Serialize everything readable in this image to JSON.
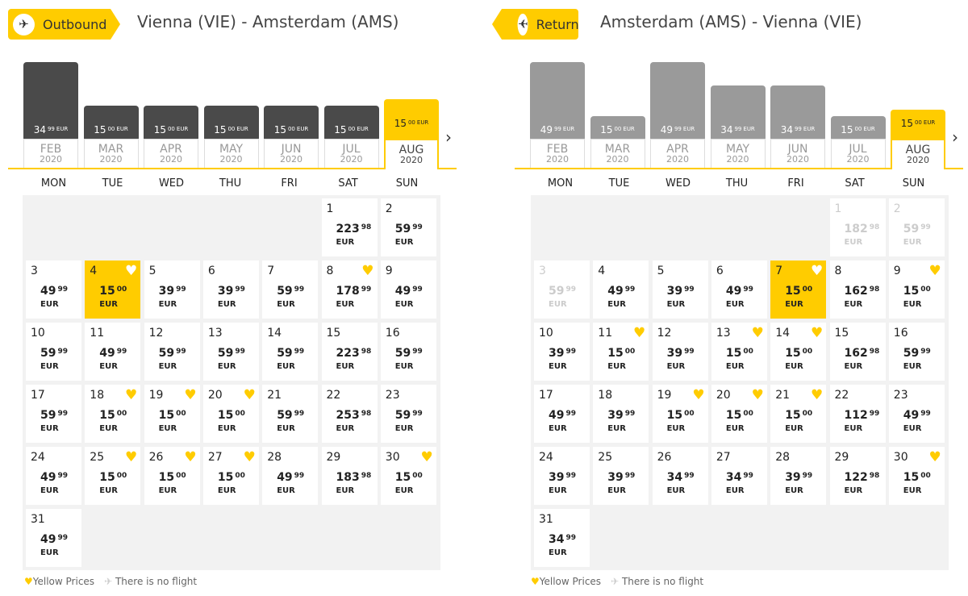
{
  "colors": {
    "accent": "#ffcc00",
    "bar_out": "#4a4a4a",
    "bar_ret": "#9a9a9a"
  },
  "weekdays": [
    "MON",
    "TUE",
    "WED",
    "THU",
    "FRI",
    "SAT",
    "SUN"
  ],
  "legend": {
    "yellow": "Yellow Prices",
    "noflight": "There is no flight"
  },
  "outbound": {
    "tag": "Outbound",
    "route": "Vienna (VIE) - Amsterdam (AMS)",
    "months": [
      {
        "m": "FEB",
        "y": "2020",
        "int": "34",
        "dec": "99",
        "cur": "EUR",
        "price": 34.99
      },
      {
        "m": "MAR",
        "y": "2020",
        "int": "15",
        "dec": "00",
        "cur": "EUR",
        "price": 15
      },
      {
        "m": "APR",
        "y": "2020",
        "int": "15",
        "dec": "00",
        "cur": "EUR",
        "price": 15
      },
      {
        "m": "MAY",
        "y": "2020",
        "int": "15",
        "dec": "00",
        "cur": "EUR",
        "price": 15
      },
      {
        "m": "JUN",
        "y": "2020",
        "int": "15",
        "dec": "00",
        "cur": "EUR",
        "price": 15
      },
      {
        "m": "JUL",
        "y": "2020",
        "int": "15",
        "dec": "00",
        "cur": "EUR",
        "price": 15
      },
      {
        "m": "AUG",
        "y": "2020",
        "int": "15",
        "dec": "00",
        "cur": "EUR",
        "price": 15,
        "selected": true
      }
    ],
    "first_weekday": 5,
    "days": [
      [
        "223",
        "98"
      ],
      [
        "59",
        "99"
      ],
      [
        "49",
        "99"
      ],
      [
        "15",
        "00",
        "h",
        "sel"
      ],
      [
        "39",
        "99"
      ],
      [
        "39",
        "99"
      ],
      [
        "59",
        "99"
      ],
      [
        "178",
        "99",
        "h"
      ],
      [
        "49",
        "99"
      ],
      [
        "59",
        "99"
      ],
      [
        "49",
        "99"
      ],
      [
        "59",
        "99"
      ],
      [
        "59",
        "99"
      ],
      [
        "59",
        "99"
      ],
      [
        "223",
        "98"
      ],
      [
        "59",
        "99"
      ],
      [
        "59",
        "99"
      ],
      [
        "15",
        "00",
        "h"
      ],
      [
        "15",
        "00",
        "h"
      ],
      [
        "15",
        "00",
        "h"
      ],
      [
        "59",
        "99"
      ],
      [
        "253",
        "98"
      ],
      [
        "59",
        "99"
      ],
      [
        "49",
        "99"
      ],
      [
        "15",
        "00",
        "h"
      ],
      [
        "15",
        "00",
        "h"
      ],
      [
        "15",
        "00",
        "h"
      ],
      [
        "49",
        "99"
      ],
      [
        "183",
        "98"
      ],
      [
        "15",
        "00",
        "h"
      ],
      [
        "49",
        "99"
      ]
    ]
  },
  "return": {
    "tag": "Return",
    "route": "Amsterdam (AMS) - Vienna (VIE)",
    "months": [
      {
        "m": "FEB",
        "y": "2020",
        "int": "49",
        "dec": "99",
        "cur": "EUR",
        "price": 49.99
      },
      {
        "m": "MAR",
        "y": "2020",
        "int": "15",
        "dec": "00",
        "cur": "EUR",
        "price": 15
      },
      {
        "m": "APR",
        "y": "2020",
        "int": "49",
        "dec": "99",
        "cur": "EUR",
        "price": 49.99
      },
      {
        "m": "MAY",
        "y": "2020",
        "int": "34",
        "dec": "99",
        "cur": "EUR",
        "price": 34.99
      },
      {
        "m": "JUN",
        "y": "2020",
        "int": "34",
        "dec": "99",
        "cur": "EUR",
        "price": 34.99
      },
      {
        "m": "JUL",
        "y": "2020",
        "int": "15",
        "dec": "00",
        "cur": "EUR",
        "price": 15
      },
      {
        "m": "AUG",
        "y": "2020",
        "int": "15",
        "dec": "00",
        "cur": "EUR",
        "price": 15,
        "selected": true
      }
    ],
    "first_weekday": 5,
    "days": [
      [
        "182",
        "98",
        "",
        "dis"
      ],
      [
        "59",
        "99",
        "",
        "dis"
      ],
      [
        "59",
        "99",
        "",
        "dis"
      ],
      [
        "49",
        "99"
      ],
      [
        "39",
        "99"
      ],
      [
        "49",
        "99"
      ],
      [
        "15",
        "00",
        "h",
        "sel"
      ],
      [
        "162",
        "98"
      ],
      [
        "15",
        "00",
        "h"
      ],
      [
        "39",
        "99"
      ],
      [
        "15",
        "00",
        "h"
      ],
      [
        "39",
        "99"
      ],
      [
        "15",
        "00",
        "h"
      ],
      [
        "15",
        "00",
        "h"
      ],
      [
        "162",
        "98"
      ],
      [
        "59",
        "99"
      ],
      [
        "49",
        "99"
      ],
      [
        "39",
        "99"
      ],
      [
        "15",
        "00",
        "h"
      ],
      [
        "15",
        "00",
        "h"
      ],
      [
        "15",
        "00",
        "h"
      ],
      [
        "112",
        "99"
      ],
      [
        "49",
        "99"
      ],
      [
        "39",
        "99"
      ],
      [
        "39",
        "99"
      ],
      [
        "34",
        "99"
      ],
      [
        "34",
        "99"
      ],
      [
        "39",
        "99"
      ],
      [
        "122",
        "98"
      ],
      [
        "15",
        "00",
        "h"
      ],
      [
        "34",
        "99"
      ]
    ]
  }
}
